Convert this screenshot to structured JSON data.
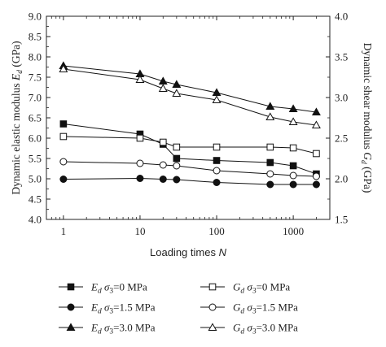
{
  "chart_data": {
    "type": "line",
    "x_scale": "log",
    "xlabel": "Loading times",
    "xlabel_var": "N",
    "ylabel_left": "Dynamic elastic modulus",
    "ylabel_left_var": "E",
    "ylabel_left_sub": "d",
    "ylabel_left_unit": "(GPa)",
    "ylabel_right": "Dynamic shear modulus",
    "ylabel_right_var": "G",
    "ylabel_right_sub": "d",
    "ylabel_right_unit": "(GPa)",
    "xlim": [
      0.6,
      3000
    ],
    "ylim_left": [
      4.0,
      9.0
    ],
    "ylim_right": [
      1.5,
      4.0
    ],
    "x_ticks": [
      1,
      10,
      100,
      1000
    ],
    "x_tick_labels": [
      "1",
      "10",
      "100",
      "1000"
    ],
    "y_left_ticks": [
      "4.0",
      "4.5",
      "5.0",
      "5.5",
      "6.0",
      "6.5",
      "7.0",
      "7.5",
      "8.0",
      "8.5",
      "9.0"
    ],
    "y_right_ticks": [
      "1.5",
      "2.0",
      "2.5",
      "3.0",
      "3.5",
      "4.0"
    ],
    "grid": false,
    "legend_position": "bottom",
    "series": [
      {
        "name": "E_d σ3=0 MPa",
        "label_var": "E",
        "label_sub": "d",
        "label_cond": "σ",
        "label_cond_sub": "3",
        "label_value": "=0 MPa",
        "axis": "left",
        "marker": "square",
        "filled": true,
        "x": [
          1,
          10,
          20,
          30,
          100,
          500,
          1000,
          2000
        ],
        "y": [
          6.35,
          6.1,
          5.85,
          5.5,
          5.45,
          5.4,
          5.32,
          5.12
        ]
      },
      {
        "name": "E_d σ3=1.5 MPa",
        "label_var": "E",
        "label_sub": "d",
        "label_cond": "σ",
        "label_cond_sub": "3",
        "label_value": "=1.5 MPa",
        "axis": "left",
        "marker": "circle",
        "filled": true,
        "x": [
          1,
          10,
          20,
          30,
          100,
          500,
          1000,
          2000
        ],
        "y": [
          4.99,
          5.01,
          4.99,
          4.98,
          4.91,
          4.86,
          4.86,
          4.86
        ]
      },
      {
        "name": "E_d σ3=3.0 MPa",
        "label_var": "E",
        "label_sub": "d",
        "label_cond": "σ",
        "label_cond_sub": "3",
        "label_value": "=3.0 MPa",
        "axis": "left",
        "marker": "triangle",
        "filled": true,
        "x": [
          1,
          10,
          20,
          30,
          100,
          500,
          1000,
          2000
        ],
        "y": [
          7.78,
          7.58,
          7.4,
          7.32,
          7.12,
          6.78,
          6.72,
          6.64
        ]
      },
      {
        "name": "G_d σ3=0 MPa",
        "label_var": "G",
        "label_sub": "d",
        "label_cond": "σ",
        "label_cond_sub": "3",
        "label_value": "=0 MPa",
        "axis": "right",
        "marker": "square",
        "filled": false,
        "x": [
          1,
          10,
          20,
          30,
          100,
          500,
          1000,
          2000
        ],
        "y": [
          2.52,
          2.5,
          2.45,
          2.39,
          2.39,
          2.39,
          2.38,
          2.31
        ]
      },
      {
        "name": "G_d σ3=1.5 MPa",
        "label_var": "G",
        "label_sub": "d",
        "label_cond": "σ",
        "label_cond_sub": "3",
        "label_value": "=1.5 MPa",
        "axis": "right",
        "marker": "circle",
        "filled": false,
        "x": [
          1,
          10,
          20,
          30,
          100,
          500,
          1000,
          2000
        ],
        "y": [
          2.21,
          2.19,
          2.17,
          2.16,
          2.1,
          2.06,
          2.04,
          2.03
        ]
      },
      {
        "name": "G_d σ3=3.0 MPa",
        "label_var": "G",
        "label_sub": "d",
        "label_cond": "σ",
        "label_cond_sub": "3",
        "label_value": "=3.0 MPa",
        "axis": "right",
        "marker": "triangle",
        "filled": false,
        "x": [
          1,
          10,
          20,
          30,
          100,
          500,
          1000,
          2000
        ],
        "y": [
          3.35,
          3.22,
          3.11,
          3.05,
          2.97,
          2.76,
          2.7,
          2.66
        ]
      }
    ]
  }
}
